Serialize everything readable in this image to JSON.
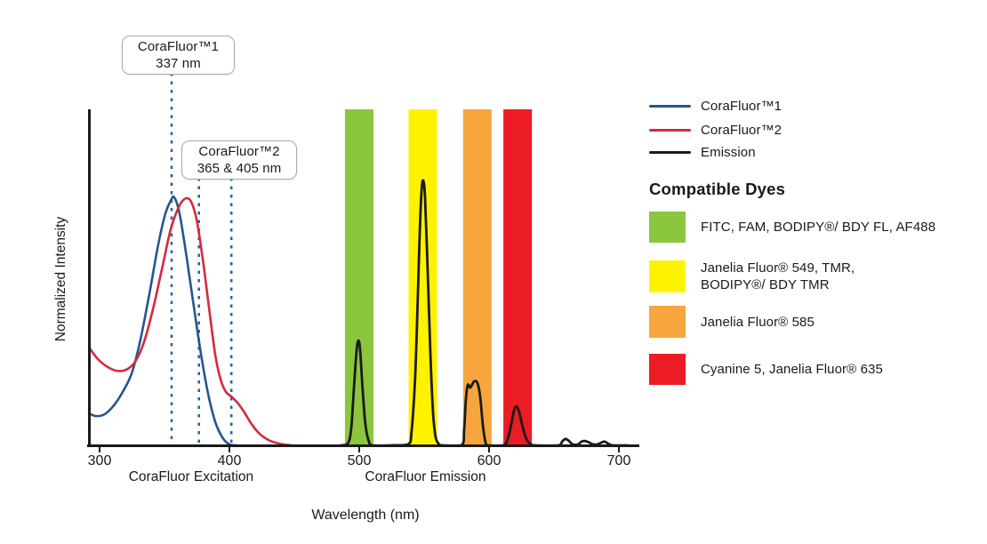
{
  "figure": {
    "callouts": [
      {
        "title": "CoraFluor™1",
        "value": "337 nm"
      },
      {
        "title": "CoraFluor™2",
        "value": "365 & 405 nm"
      }
    ]
  },
  "legend": {
    "series": [
      {
        "label": "CoraFluor™1",
        "color": "#25568E"
      },
      {
        "label": "CoraFluor™2",
        "color": "#D42A3E"
      },
      {
        "label": "Emission",
        "color": "#1A1A1A"
      }
    ],
    "dyes_heading": "Compatible Dyes",
    "dyes": [
      {
        "label": "FITC, FAM, BODIPY®/ BDY FL, AF488",
        "color": "#8CC63E"
      },
      {
        "label": "Janelia Fluor® 549, TMR,\nBODIPY®/ BDY TMR",
        "color": "#FFF200"
      },
      {
        "label": "Janelia Fluor® 585",
        "color": "#F7A63E"
      },
      {
        "label": "Cyanine 5, Janelia Fluor® 635",
        "color": "#EC1C24"
      }
    ]
  },
  "chart_data": {
    "type": "line",
    "xlabel": "Wavelength (nm)",
    "ylabel": "Normalized Intensity",
    "x_ticks": [
      300,
      400,
      500,
      600,
      700
    ],
    "x_range": [
      292,
      716
    ],
    "y_range": [
      0,
      1
    ],
    "grid": false,
    "legend_position": "top-right",
    "region_labels": [
      {
        "text": "CoraFluor Excitation",
        "center_nm": 370.5
      },
      {
        "text": "CoraFluor Emission",
        "center_nm": 551
      }
    ],
    "filter_bands": [
      {
        "name": "green",
        "nm": [
          489,
          511
        ],
        "color": "#8CC63E"
      },
      {
        "name": "yellow",
        "nm": [
          538,
          560
        ],
        "color": "#FFF200"
      },
      {
        "name": "orange",
        "nm": [
          580,
          602
        ],
        "color": "#F7A63E"
      },
      {
        "name": "red",
        "nm": [
          611,
          633
        ],
        "color": "#EC1C24"
      }
    ],
    "excitation_markers": [
      {
        "label_nm": "337",
        "drawn_nm": 355.5,
        "callout": 0
      },
      {
        "label_nm": "365",
        "drawn_nm": 376.5,
        "callout": 1
      },
      {
        "label_nm": "405",
        "drawn_nm": 401.5,
        "callout": 1
      }
    ],
    "series": [
      {
        "name": "CoraFluor™1",
        "color": "#25568E",
        "points": [
          [
            291.8,
            0.095
          ],
          [
            297.3,
            0.087
          ],
          [
            304.1,
            0.093
          ],
          [
            311.0,
            0.119
          ],
          [
            317.8,
            0.159
          ],
          [
            324.7,
            0.214
          ],
          [
            331.5,
            0.315
          ],
          [
            338.4,
            0.452
          ],
          [
            345.2,
            0.598
          ],
          [
            350.7,
            0.69
          ],
          [
            354.8,
            0.728
          ],
          [
            357.5,
            0.738
          ],
          [
            361.6,
            0.69
          ],
          [
            367.1,
            0.558
          ],
          [
            372.6,
            0.413
          ],
          [
            378.1,
            0.272
          ],
          [
            383.6,
            0.153
          ],
          [
            389.0,
            0.071
          ],
          [
            394.5,
            0.024
          ],
          [
            400.0,
            0.003
          ],
          [
            405.5,
            0.0
          ]
        ]
      },
      {
        "name": "CoraFluor™2",
        "color": "#D42A3E",
        "points": [
          [
            292.5,
            0.288
          ],
          [
            298.6,
            0.257
          ],
          [
            305.5,
            0.235
          ],
          [
            313.0,
            0.222
          ],
          [
            320.5,
            0.225
          ],
          [
            327.4,
            0.249
          ],
          [
            334.2,
            0.307
          ],
          [
            341.1,
            0.405
          ],
          [
            348.0,
            0.524
          ],
          [
            354.8,
            0.643
          ],
          [
            361.6,
            0.714
          ],
          [
            366.4,
            0.735
          ],
          [
            370.5,
            0.725
          ],
          [
            374.7,
            0.672
          ],
          [
            379.5,
            0.553
          ],
          [
            384.2,
            0.413
          ],
          [
            389.0,
            0.272
          ],
          [
            393.2,
            0.196
          ],
          [
            397.3,
            0.159
          ],
          [
            402.1,
            0.143
          ],
          [
            406.8,
            0.124
          ],
          [
            411.6,
            0.098
          ],
          [
            417.1,
            0.063
          ],
          [
            423.3,
            0.034
          ],
          [
            430.1,
            0.016
          ],
          [
            438.4,
            0.005
          ],
          [
            448.0,
            0.0
          ]
        ]
      },
      {
        "name": "Emission",
        "color": "#1A1A1A",
        "points": [
          [
            485.6,
            0.0
          ],
          [
            491.1,
            0.005
          ],
          [
            493.8,
            0.048
          ],
          [
            495.9,
            0.169
          ],
          [
            497.9,
            0.278
          ],
          [
            499.3,
            0.312
          ],
          [
            500.7,
            0.283
          ],
          [
            502.7,
            0.164
          ],
          [
            504.8,
            0.061
          ],
          [
            507.5,
            0.011
          ],
          [
            510.3,
            0.0
          ],
          [
            524.7,
            0.0
          ],
          [
            537.7,
            0.003
          ],
          [
            540.4,
            0.045
          ],
          [
            543.2,
            0.214
          ],
          [
            545.2,
            0.452
          ],
          [
            546.6,
            0.63
          ],
          [
            548.0,
            0.757
          ],
          [
            549.3,
            0.788
          ],
          [
            550.7,
            0.738
          ],
          [
            552.7,
            0.526
          ],
          [
            554.8,
            0.275
          ],
          [
            556.8,
            0.101
          ],
          [
            558.9,
            0.024
          ],
          [
            561.6,
            0.003
          ],
          [
            564.4,
            0.0
          ],
          [
            578.8,
            0.0
          ],
          [
            580.8,
            0.048
          ],
          [
            582.2,
            0.138
          ],
          [
            583.6,
            0.18
          ],
          [
            585.6,
            0.172
          ],
          [
            588.4,
            0.19
          ],
          [
            591.1,
            0.185
          ],
          [
            593.2,
            0.143
          ],
          [
            595.2,
            0.061
          ],
          [
            597.3,
            0.008
          ],
          [
            599.3,
            0.0
          ],
          [
            610.9,
            0.0
          ],
          [
            614.4,
            0.019
          ],
          [
            617.1,
            0.063
          ],
          [
            619.2,
            0.103
          ],
          [
            621.2,
            0.116
          ],
          [
            623.3,
            0.098
          ],
          [
            626.0,
            0.053
          ],
          [
            628.8,
            0.019
          ],
          [
            632.2,
            0.003
          ],
          [
            635.6,
            0.0
          ],
          [
            653.4,
            0.0
          ],
          [
            656.2,
            0.011
          ],
          [
            658.9,
            0.019
          ],
          [
            661.6,
            0.013
          ],
          [
            664.4,
            0.003
          ],
          [
            668.5,
            0.003
          ],
          [
            671.2,
            0.011
          ],
          [
            674.0,
            0.013
          ],
          [
            677.4,
            0.008
          ],
          [
            680.1,
            0.003
          ],
          [
            683.6,
            0.003
          ],
          [
            686.3,
            0.008
          ],
          [
            689.0,
            0.011
          ],
          [
            691.8,
            0.005
          ],
          [
            695.2,
            0.0
          ],
          [
            706.8,
            0.0
          ]
        ]
      }
    ]
  }
}
